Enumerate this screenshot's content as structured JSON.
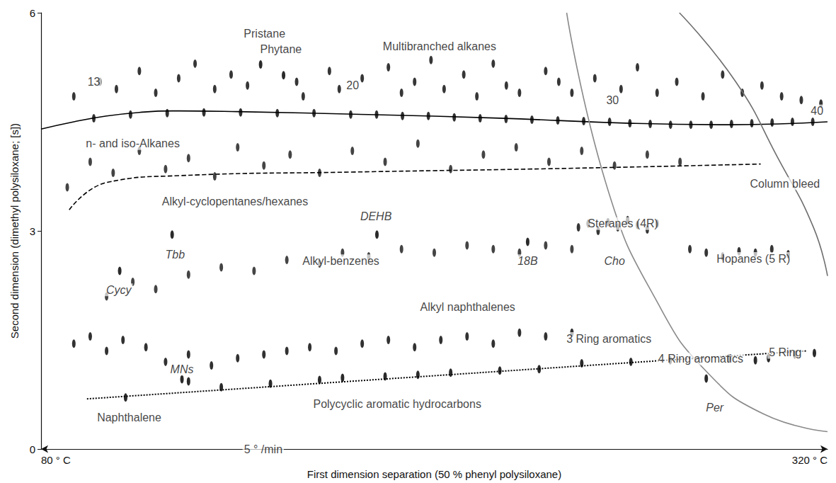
{
  "chart_data": {
    "type": "scatter",
    "xlabel": "First dimension separation (50 % phenyl polysiloxane)",
    "ylabel": "Second dimension (dimethyl polysiloxane; [s])",
    "xlim": [
      80,
      320
    ],
    "xticks": [
      {
        "value": 80,
        "label": "80 ° C"
      },
      {
        "value": 320,
        "label": "320 ° C"
      }
    ],
    "ylim": [
      0,
      6
    ],
    "yticks": [
      0,
      3,
      6
    ],
    "grid": false,
    "series": [
      {
        "type": "scatter",
        "marker": "ellipse",
        "color": "#151515",
        "x": [
          96.1,
          107.3,
          118.5,
          129.7,
          140.9,
          152.1,
          163.3,
          174.5,
          182.4,
          190.3,
          198.2,
          206.1,
          214.0,
          221.9,
          229.8,
          237.7,
          245.6,
          253.5,
          259.7,
          265.9,
          272.1,
          278.3,
          284.5,
          290.7,
          296.9,
          303.1,
          309.3,
          315.5
        ],
        "values": [
          4.55,
          4.6,
          4.62,
          4.63,
          4.63,
          4.62,
          4.62,
          4.6,
          4.6,
          4.58,
          4.58,
          4.56,
          4.55,
          4.54,
          4.53,
          4.52,
          4.51,
          4.5,
          4.48,
          4.47,
          4.46,
          4.46,
          4.46,
          4.47,
          4.48,
          4.49,
          4.5,
          4.5
        ]
      },
      {
        "type": "scatter",
        "marker": "ellipse",
        "color": "#1a1a1a",
        "x": [
          90,
          98,
          103,
          110,
          115,
          122,
          127,
          133,
          138,
          143,
          158,
          160,
          168,
          171,
          178,
          186,
          190,
          194,
          199,
          203,
          209,
          213,
          218,
          222,
          226,
          234,
          238,
          242,
          249,
          257,
          262,
          268,
          274,
          282,
          288,
          294,
          300,
          306,
          312,
          318
        ],
        "values": [
          4.85,
          5.05,
          4.95,
          5.2,
          4.9,
          5.1,
          5.3,
          4.95,
          5.15,
          5.0,
          5.05,
          4.85,
          5.2,
          4.95,
          5.1,
          5.25,
          4.9,
          5.05,
          5.35,
          4.95,
          5.15,
          4.85,
          5.3,
          5.0,
          4.9,
          5.2,
          5.05,
          4.9,
          5.1,
          4.95,
          5.25,
          4.9,
          5.05,
          4.85,
          5.15,
          4.9,
          5.0,
          4.85,
          4.8,
          4.75
        ]
      },
      {
        "type": "scatter",
        "marker": "ellipse",
        "color": "#2a2a2a",
        "x": [
          88,
          95,
          102,
          110,
          118,
          125,
          133,
          140,
          148,
          156,
          165,
          175,
          185,
          195,
          205,
          215,
          225,
          235,
          245,
          255,
          265,
          275
        ],
        "values": [
          3.6,
          3.95,
          3.8,
          4.1,
          3.85,
          4.0,
          3.75,
          4.15,
          3.9,
          4.05,
          3.8,
          4.1,
          3.95,
          4.2,
          3.85,
          4.05,
          4.15,
          3.95,
          4.1,
          3.9,
          4.05,
          3.95
        ]
      },
      {
        "type": "scatter",
        "marker": "ellipse",
        "color": "#2a2a2a",
        "x": [
          100,
          108,
          115,
          125,
          135,
          145,
          155,
          165,
          172,
          180,
          190,
          200,
          210,
          218,
          226,
          234,
          242
        ],
        "values": [
          2.1,
          2.3,
          2.2,
          2.4,
          2.5,
          2.45,
          2.6,
          2.55,
          2.7,
          2.65,
          2.75,
          2.7,
          2.8,
          2.75,
          2.7,
          2.8,
          2.75
        ]
      },
      {
        "type": "scatter",
        "marker": "ellipse",
        "color": "#1a1a1a",
        "x": [
          244,
          247,
          250,
          253,
          256,
          259,
          262,
          265,
          268
        ],
        "values": [
          3.05,
          3.1,
          3.0,
          3.12,
          3.05,
          3.15,
          3.08,
          3.02,
          3.1
        ]
      },
      {
        "type": "scatter",
        "marker": "ellipse",
        "color": "#1a1a1a",
        "x": [
          278,
          283,
          288,
          293,
          298,
          303,
          308
        ],
        "values": [
          2.75,
          2.7,
          2.65,
          2.72,
          2.7,
          2.75,
          2.68
        ]
      },
      {
        "type": "scatter",
        "marker": "ellipse",
        "color": "#151515",
        "x": [
          90,
          95,
          100,
          105,
          112,
          118,
          125,
          132,
          140,
          148,
          155,
          162,
          170,
          178,
          186,
          194,
          202,
          210,
          218,
          226,
          234,
          242
        ],
        "values": [
          1.45,
          1.55,
          1.35,
          1.5,
          1.4,
          1.2,
          1.3,
          1.15,
          1.25,
          1.3,
          1.35,
          1.4,
          1.35,
          1.45,
          1.5,
          1.4,
          1.5,
          1.55,
          1.45,
          1.6,
          1.55,
          1.6
        ]
      },
      {
        "type": "scatter",
        "marker": "ellipse",
        "color": "#0d0d0d",
        "x": [
          105.8,
          123,
          125,
          135,
          150,
          165,
          172,
          185,
          195,
          205,
          220,
          232,
          245,
          260,
          272,
          290,
          298,
          302,
          310,
          316
        ],
        "values": [
          0.71,
          0.96,
          0.93,
          0.85,
          0.9,
          0.95,
          0.98,
          1.0,
          1.02,
          1.05,
          1.08,
          1.1,
          1.18,
          1.2,
          1.22,
          1.25,
          1.22,
          1.25,
          1.3,
          1.32
        ]
      },
      {
        "type": "scatter",
        "marker": "ellipse",
        "color": "#0d0d0d",
        "x": [
          147,
          154,
          182.5,
          120,
          104,
          228.5,
          283
        ],
        "values": [
          5.29,
          5.14,
          2.95,
          2.95,
          2.45,
          2.85,
          0.97
        ]
      },
      {
        "type": "line",
        "line_style": "solid",
        "color": "#000000",
        "x": [
          80,
          90,
          100,
          110,
          120,
          140,
          180,
          220,
          260,
          290,
          320
        ],
        "values": [
          4.4,
          4.5,
          4.58,
          4.63,
          4.65,
          4.64,
          4.6,
          4.55,
          4.48,
          4.46,
          4.5
        ]
      },
      {
        "type": "line",
        "line_style": "dashed",
        "color": "#000000",
        "x": [
          88.6,
          100.4,
          122,
          175.8,
          240.4,
          299.6
        ],
        "values": [
          3.29,
          3.67,
          3.76,
          3.81,
          3.86,
          3.92
        ]
      },
      {
        "type": "line",
        "line_style": "dotted",
        "color": "#000000",
        "x": [
          94,
          313.5
        ],
        "values": [
          0.69,
          1.35
        ]
      },
      {
        "type": "line",
        "line_style": "solid",
        "color": "#6e6e6e",
        "x": [
          274.8,
          292.0,
          304.9,
          315.7,
          320
        ],
        "values": [
          6,
          5.05,
          4.0,
          3.05,
          2.38
        ]
      },
      {
        "type": "line",
        "line_style": "solid",
        "color": "#8a8a8a",
        "x": [
          240.4,
          253.3,
          268.3,
          283.4,
          300.6,
          320
        ],
        "values": [
          6,
          3.52,
          2.0,
          1.05,
          0.48,
          0.24
        ]
      }
    ],
    "annotations": [
      {
        "text": "Pristane",
        "x": 148.2,
        "y": 5.71
      },
      {
        "text": "Phytane",
        "x": 153.2,
        "y": 5.5
      },
      {
        "text": "Multibranched alkanes",
        "x": 201.6,
        "y": 5.54
      },
      {
        "text": "13",
        "x": 96.1,
        "y": 5.05
      },
      {
        "text": "20",
        "x": 175.1,
        "y": 5.0
      },
      {
        "text": "30",
        "x": 254.4,
        "y": 4.8
      },
      {
        "text": "40",
        "x": 316.8,
        "y": 4.65
      },
      {
        "text": "n- and iso-Alkanes",
        "x": 108,
        "y": 4.2
      },
      {
        "text": "Alkyl-cyclopentanes/hexanes",
        "x": 139.2,
        "y": 3.4
      },
      {
        "text": "DEHB",
        "x": 182.2,
        "y": 3.2
      },
      {
        "text": "Tbb",
        "x": 120.9,
        "y": 2.67
      },
      {
        "text": "Cycy",
        "x": 103.7,
        "y": 2.19
      },
      {
        "text": "Alkyl-benzenes",
        "x": 171.5,
        "y": 2.59
      },
      {
        "text": "18B",
        "x": 228.5,
        "y": 2.59
      },
      {
        "text": "Cho",
        "x": 255,
        "y": 2.59
      },
      {
        "text": "Steranes (4R)",
        "x": 257.6,
        "y": 3.1
      },
      {
        "text": "Hopanes (5 R)",
        "x": 297.4,
        "y": 2.62
      },
      {
        "text": "Column bleed",
        "x": 307,
        "y": 3.65
      },
      {
        "text": "Alkyl naphthalenes",
        "x": 210.2,
        "y": 1.95
      },
      {
        "text": "3 Ring aromatics",
        "x": 253.3,
        "y": 1.52
      },
      {
        "text": "4 Ring aromatics",
        "x": 281.3,
        "y": 1.24
      },
      {
        "text": "5 Ring",
        "x": 307.1,
        "y": 1.33
      },
      {
        "text": "MNs",
        "x": 123,
        "y": 1.1
      },
      {
        "text": "Per",
        "x": 285.6,
        "y": 0.57
      },
      {
        "text": "Polycyclic aromatic hydrocarbons",
        "x": 188.7,
        "y": 0.62
      },
      {
        "text": "Naphthalene",
        "x": 106.9,
        "y": 0.43
      },
      {
        "text": "5 ° /min",
        "x": 147.8,
        "y": 0
      }
    ]
  }
}
